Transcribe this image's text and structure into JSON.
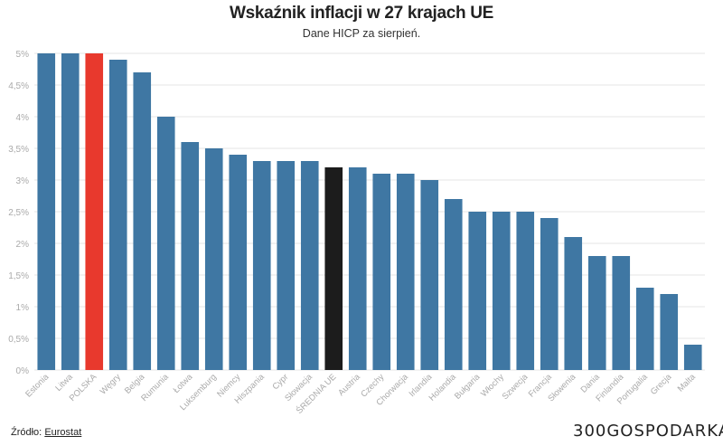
{
  "chart_data": {
    "type": "bar",
    "title": "Wskaźnik inflacji w 27 krajach UE",
    "subtitle": "Dane HICP za sierpień.",
    "xlabel": "",
    "ylabel": "",
    "ylim": [
      0,
      5
    ],
    "yticks": [
      "0%",
      "0,5%",
      "1%",
      "1,5%",
      "2%",
      "2,5%",
      "3%",
      "3,5%",
      "4%",
      "4,5%",
      "5%"
    ],
    "grid": true,
    "categories": [
      "Estonia",
      "Litwa",
      "POLSKA",
      "Węgry",
      "Belgia",
      "Rumunia",
      "Łotwa",
      "Luksemburg",
      "Niemcy",
      "Hiszpania",
      "Cypr",
      "Słowacja",
      "ŚREDNIA UE",
      "Austria",
      "Czechy",
      "Chorwacja",
      "Irlandia",
      "Holandia",
      "Bułgaria",
      "Włochy",
      "Szwecja",
      "Francja",
      "Słowenia",
      "Dania",
      "Finlandia",
      "Portugalia",
      "Grecja",
      "Malta"
    ],
    "values": [
      5.0,
      5.0,
      5.0,
      4.9,
      4.7,
      4.0,
      3.6,
      3.5,
      3.4,
      3.3,
      3.3,
      3.3,
      3.2,
      3.2,
      3.1,
      3.1,
      3.0,
      2.7,
      2.5,
      2.5,
      2.5,
      2.4,
      2.1,
      1.8,
      1.8,
      1.3,
      1.2,
      0.4
    ],
    "colors": {
      "default": "#3f77a3",
      "highlight_poland": "#e8392d",
      "highlight_eu": "#1c1c1c",
      "grid": "#e6e6e6",
      "tick": "#aaaaaa"
    }
  },
  "footer": {
    "source_label": "Źródło:",
    "source_link": "Eurostat",
    "logo_prefix": "300",
    "logo_suffix": "GOSPODARKA"
  }
}
